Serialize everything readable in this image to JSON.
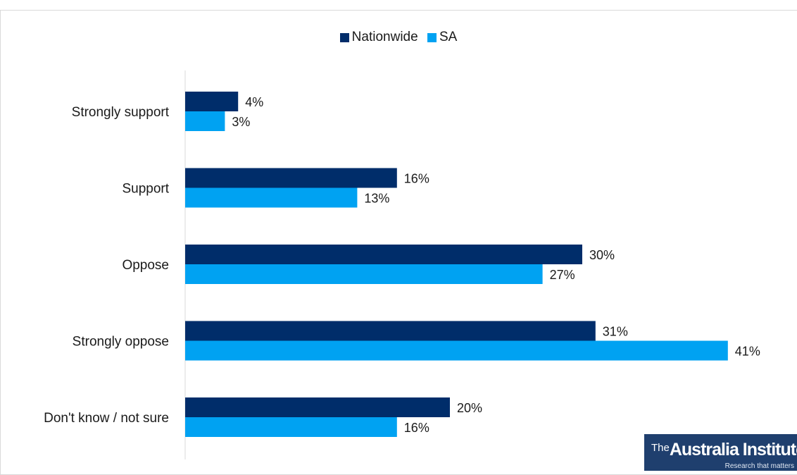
{
  "chart_data": {
    "type": "bar",
    "orientation": "horizontal",
    "categories": [
      "Strongly support",
      "Support",
      "Oppose",
      "Strongly oppose",
      "Don't know / not sure"
    ],
    "series": [
      {
        "name": "Nationwide",
        "color": "#002d6a",
        "values": [
          4,
          16,
          30,
          31,
          20
        ],
        "labels": [
          "4%",
          "16%",
          "30%",
          "31%",
          "20%"
        ]
      },
      {
        "name": "SA",
        "color": "#00a2f2",
        "values": [
          3,
          13,
          27,
          41,
          16
        ],
        "labels": [
          "3%",
          "13%",
          "27%",
          "41%",
          "16%"
        ]
      }
    ],
    "xlim": [
      0,
      44
    ],
    "unit": "%",
    "grid": false,
    "legend": "top-center"
  },
  "logo": {
    "prefix": "The",
    "name": "Australia Institute",
    "tagline": "Research that matters"
  }
}
